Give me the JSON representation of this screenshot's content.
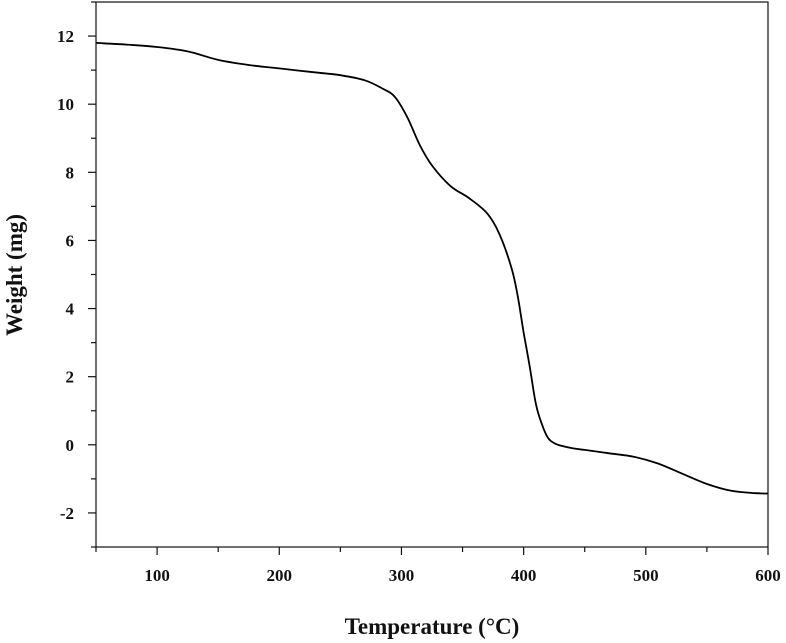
{
  "chart_data": {
    "type": "line",
    "title": "",
    "xlabel": "Temperature (°C)",
    "ylabel": "Weight (mg)",
    "xlim": [
      50,
      600
    ],
    "ylim": [
      -3,
      13
    ],
    "x_ticks": [
      100,
      200,
      300,
      400,
      500,
      600
    ],
    "x_tick_labels": [
      "100",
      "200",
      "300",
      "400",
      "500",
      "600"
    ],
    "y_ticks": [
      -2,
      0,
      2,
      4,
      6,
      8,
      10,
      12
    ],
    "y_tick_labels": [
      "-2",
      "0",
      "2",
      "4",
      "6",
      "8",
      "10",
      "12"
    ],
    "grid": false,
    "line_color": "#000000",
    "series": [
      {
        "x": [
          50,
          75,
          100,
          125,
          150,
          175,
          200,
          225,
          250,
          270,
          285,
          295,
          305,
          315,
          325,
          340,
          355,
          370,
          380,
          390,
          395,
          400,
          405,
          410,
          415,
          420,
          425,
          430,
          440,
          450,
          470,
          490,
          510,
          530,
          550,
          570,
          590,
          600
        ],
        "y": [
          11.8,
          11.75,
          11.68,
          11.55,
          11.3,
          11.15,
          11.05,
          10.95,
          10.85,
          10.7,
          10.45,
          10.2,
          9.6,
          8.8,
          8.2,
          7.6,
          7.25,
          6.8,
          6.2,
          5.2,
          4.4,
          3.3,
          2.3,
          1.2,
          0.6,
          0.2,
          0.05,
          -0.02,
          -0.1,
          -0.15,
          -0.25,
          -0.35,
          -0.55,
          -0.85,
          -1.15,
          -1.35,
          -1.42,
          -1.43
        ]
      }
    ]
  }
}
